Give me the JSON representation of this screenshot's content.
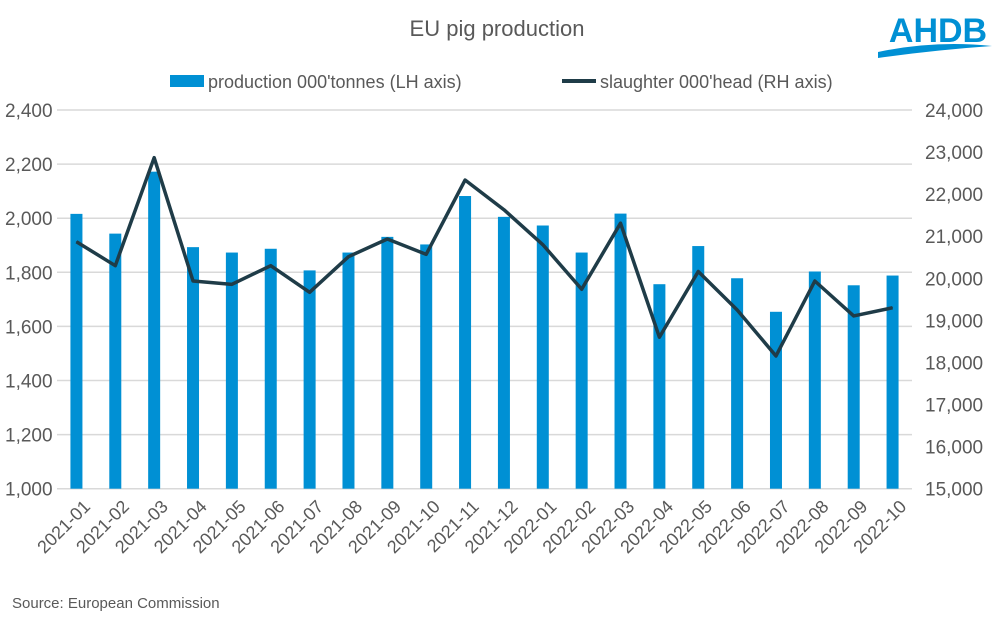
{
  "logo_text": "AHDB",
  "source": "Source: European Commission",
  "chart_data": {
    "type": "bar+line",
    "title": "EU pig production",
    "categories": [
      "2021-01",
      "2021-02",
      "2021-03",
      "2021-04",
      "2021-05",
      "2021-06",
      "2021-07",
      "2021-08",
      "2021-09",
      "2021-10",
      "2021-11",
      "2021-12",
      "2022-01",
      "2022-02",
      "2022-03",
      "2022-04",
      "2022-05",
      "2022-06",
      "2022-07",
      "2022-08",
      "2022-09",
      "2022-10"
    ],
    "series": [
      {
        "name": "production 000'tonnes (LH axis)",
        "type": "bar",
        "axis": "left",
        "color": "#0090D4",
        "values": [
          2016,
          1943,
          2172,
          1893,
          1873,
          1887,
          1807,
          1873,
          1931,
          1903,
          2082,
          2005,
          1973,
          1873,
          2017,
          1756,
          1897,
          1778,
          1654,
          1803,
          1752,
          1788
        ]
      },
      {
        "name": "slaughter 000'head (RH axis)",
        "type": "line",
        "axis": "right",
        "color": "#1F3C48",
        "values": [
          20870,
          20300,
          22867,
          19936,
          19857,
          20300,
          19667,
          20514,
          20934,
          20570,
          22336,
          21630,
          20800,
          19740,
          21310,
          18600,
          20162,
          19250,
          18154,
          19936,
          19105,
          19300
        ]
      }
    ],
    "left_axis": {
      "ylim": [
        1000,
        2400
      ],
      "ticks": [
        "1,000",
        "1,200",
        "1,400",
        "1,600",
        "1,800",
        "2,000",
        "2,200",
        "2,400"
      ]
    },
    "right_axis": {
      "ylim": [
        15000,
        24000
      ],
      "ticks": [
        "15,000",
        "16,000",
        "17,000",
        "18,000",
        "19,000",
        "20,000",
        "21,000",
        "22,000",
        "23,000",
        "24,000"
      ]
    },
    "grid": true,
    "legend": "top"
  }
}
